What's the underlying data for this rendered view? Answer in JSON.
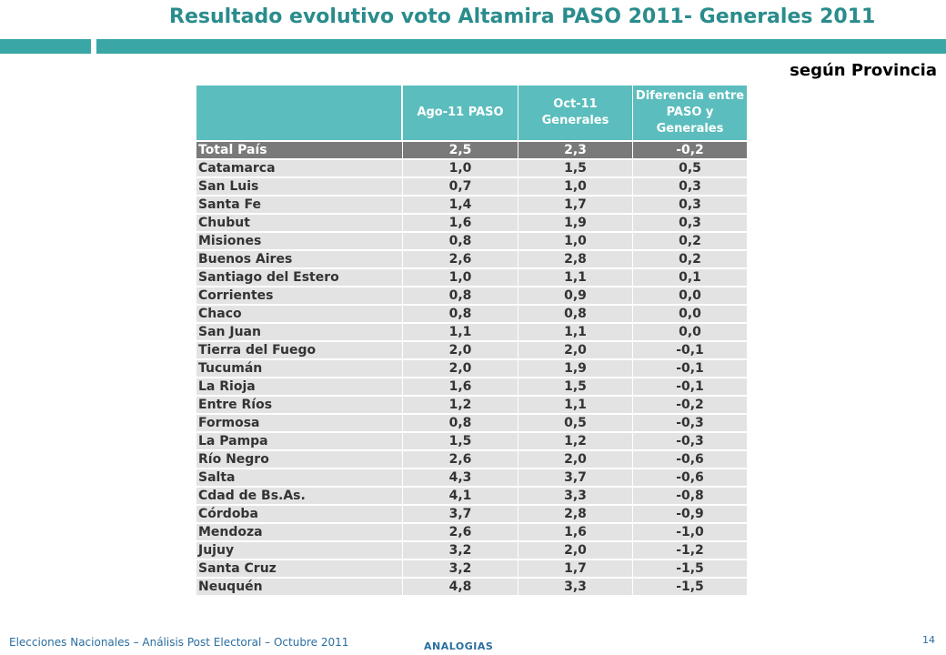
{
  "title": "Resultado evolutivo voto Altamira PASO 2011- Generales 2011",
  "subtitle": "según Provincia",
  "table": {
    "headers": [
      "",
      "Ago-11 PASO",
      "Oct-11 Generales",
      "Diferencia entre PASO y Generales"
    ],
    "total": {
      "name": "Total País",
      "paso": "2,5",
      "generales": "2,3",
      "diff": "-0,2"
    },
    "rows": [
      {
        "name": "Catamarca",
        "paso": "1,0",
        "generales": "1,5",
        "diff": "0,5"
      },
      {
        "name": "San Luis",
        "paso": "0,7",
        "generales": "1,0",
        "diff": "0,3"
      },
      {
        "name": "Santa Fe",
        "paso": "1,4",
        "generales": "1,7",
        "diff": "0,3"
      },
      {
        "name": "Chubut",
        "paso": "1,6",
        "generales": "1,9",
        "diff": "0,3"
      },
      {
        "name": "Misiones",
        "paso": "0,8",
        "generales": "1,0",
        "diff": "0,2"
      },
      {
        "name": "Buenos Aires",
        "paso": "2,6",
        "generales": "2,8",
        "diff": "0,2"
      },
      {
        "name": "Santiago del Estero",
        "paso": "1,0",
        "generales": "1,1",
        "diff": "0,1"
      },
      {
        "name": "Corrientes",
        "paso": "0,8",
        "generales": "0,9",
        "diff": "0,0"
      },
      {
        "name": "Chaco",
        "paso": "0,8",
        "generales": "0,8",
        "diff": "0,0"
      },
      {
        "name": "San Juan",
        "paso": "1,1",
        "generales": "1,1",
        "diff": "0,0"
      },
      {
        "name": "Tierra del Fuego",
        "paso": "2,0",
        "generales": "2,0",
        "diff": "-0,1"
      },
      {
        "name": "Tucumán",
        "paso": "2,0",
        "generales": "1,9",
        "diff": "-0,1"
      },
      {
        "name": "La Rioja",
        "paso": "1,6",
        "generales": "1,5",
        "diff": "-0,1"
      },
      {
        "name": "Entre Ríos",
        "paso": "1,2",
        "generales": "1,1",
        "diff": "-0,2"
      },
      {
        "name": "Formosa",
        "paso": "0,8",
        "generales": "0,5",
        "diff": "-0,3"
      },
      {
        "name": "La Pampa",
        "paso": "1,5",
        "generales": "1,2",
        "diff": "-0,3"
      },
      {
        "name": "Río Negro",
        "paso": "2,6",
        "generales": "2,0",
        "diff": "-0,6"
      },
      {
        "name": "Salta",
        "paso": "4,3",
        "generales": "3,7",
        "diff": "-0,6"
      },
      {
        "name": "Cdad de Bs.As.",
        "paso": "4,1",
        "generales": "3,3",
        "diff": "-0,8"
      },
      {
        "name": "Córdoba",
        "paso": "3,7",
        "generales": "2,8",
        "diff": "-0,9"
      },
      {
        "name": "Mendoza",
        "paso": "2,6",
        "generales": "1,6",
        "diff": "-1,0"
      },
      {
        "name": "Jujuy",
        "paso": "3,2",
        "generales": "2,0",
        "diff": "-1,2"
      },
      {
        "name": "Santa Cruz",
        "paso": "3,2",
        "generales": "1,7",
        "diff": "-1,5"
      },
      {
        "name": "Neuquén",
        "paso": "4,8",
        "generales": "3,3",
        "diff": "-1,5"
      }
    ]
  },
  "footer": {
    "text": "Elecciones Nacionales – Análisis Post Electoral – Octubre 2011",
    "brand": "ANALOGIAS",
    "page": "14"
  }
}
